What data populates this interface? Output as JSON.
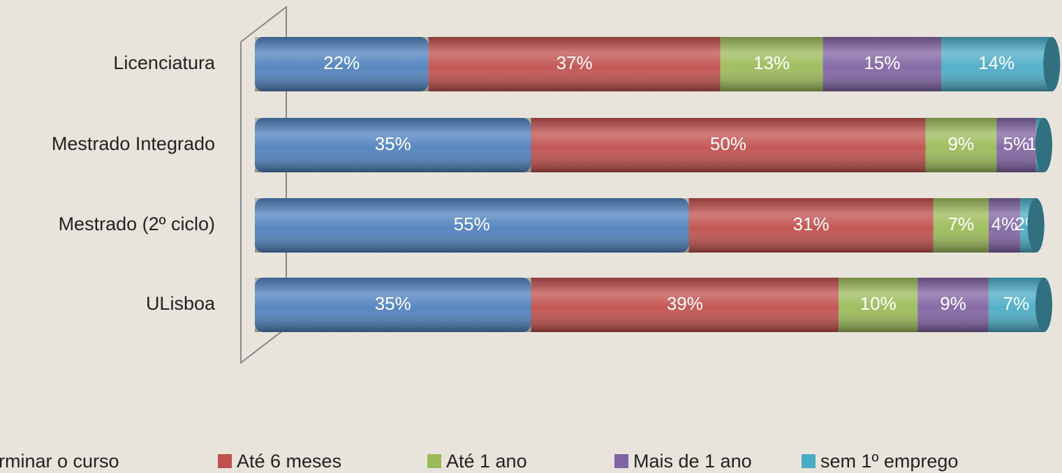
{
  "chart_data": {
    "type": "stacked_bar_horizontal",
    "categories": [
      "Licenciatura",
      "Mestrado Integrado",
      "Mestrado (2º ciclo)",
      "ULisboa"
    ],
    "series": [
      {
        "name": "rminar o curso",
        "color": "#4f81bd",
        "values": [
          22,
          35,
          55,
          35
        ],
        "value_labels": [
          "22%",
          "35%",
          "55%",
          "35%"
        ]
      },
      {
        "name": "Até 6 meses",
        "color": "#c0504d",
        "values": [
          37,
          50,
          31,
          39
        ],
        "value_labels": [
          "37%",
          "50%",
          "31%",
          "39%"
        ]
      },
      {
        "name": "Até 1 ano",
        "color": "#9bbb59",
        "values": [
          13,
          9,
          7,
          10
        ],
        "value_labels": [
          "13%",
          "9%",
          "7%",
          "10%"
        ]
      },
      {
        "name": "Mais de 1 ano",
        "color": "#8064a2",
        "values": [
          15,
          5,
          4,
          9
        ],
        "value_labels": [
          "15%",
          "5%",
          "4%",
          "9%"
        ]
      },
      {
        "name": "sem 1º emprego",
        "color": "#4bacc6",
        "values": [
          14,
          1,
          2,
          7
        ],
        "value_labels": [
          "14%",
          "1%",
          "2%",
          "7%"
        ]
      }
    ],
    "legend": "bottom"
  }
}
